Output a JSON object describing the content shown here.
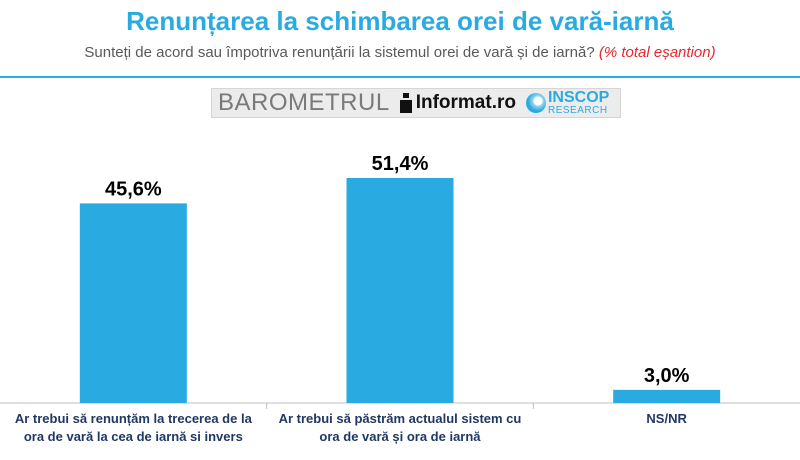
{
  "header": {
    "title": "Renunțarea la schimbarea orei de vară-iarnă",
    "subtitle": "Sunteți de acord sau împotriva renunțării la sistemul orei de vară și de iarnă?",
    "subtitle_note": "(% total eșantion)"
  },
  "banner": {
    "barometer": "BAROMETRUL",
    "informat": "Informat.ro",
    "inscop": "INSCOP",
    "inscop_sub": "RESEARCH",
    "informat_icon": "info-i-logo-icon",
    "inscop_icon": "inscop-swirl-icon"
  },
  "colors": {
    "bar": "#29abe2",
    "title": "#29abe2",
    "note": "#e8262e",
    "category_text": "#1f3864",
    "axis": "#bfbfbf"
  },
  "chart_data": {
    "type": "bar",
    "categories": [
      "Ar trebui să renunțăm la trecerea de la ora de vară la cea de iarnă si invers",
      "Ar trebui să păstrăm actualul sistem cu ora de vară și ora de iarnă",
      "NS/NR"
    ],
    "values": [
      45.6,
      51.4,
      3.0
    ],
    "data_labels": [
      "45,6%",
      "51,4%",
      "3,0%"
    ],
    "unit": "%",
    "ylim": [
      0,
      60
    ],
    "grid": false,
    "legend": "none"
  }
}
